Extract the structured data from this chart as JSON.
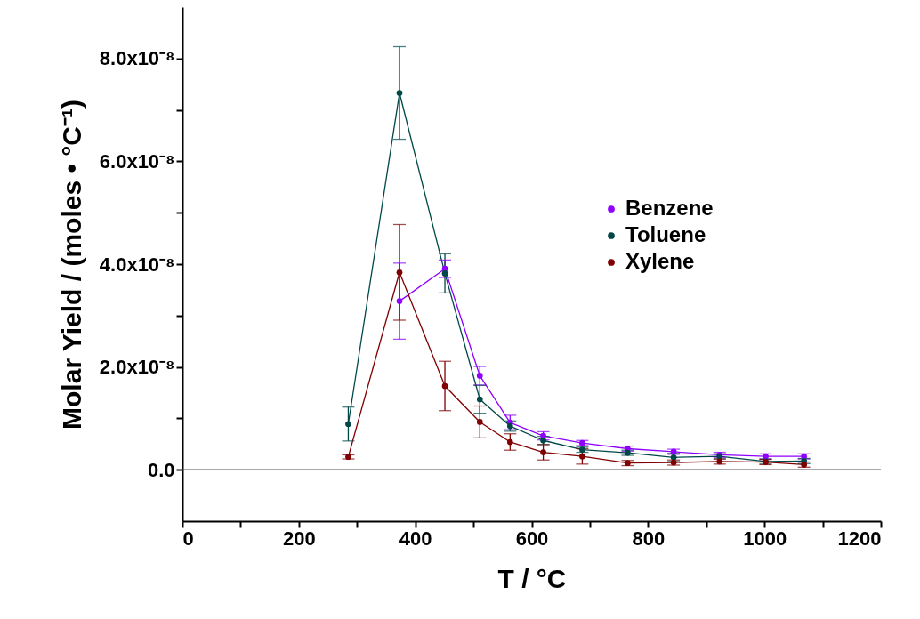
{
  "chart_data": {
    "type": "line",
    "xlabel": "T / °C",
    "ylabel": "Molar Yield / (moles • °C⁻¹)",
    "x": [
      285,
      373,
      451,
      511,
      563,
      620,
      687,
      765,
      844,
      923,
      1002,
      1068
    ],
    "series": [
      {
        "name": "Benzene",
        "color": "#8f00ff",
        "values": [
          null,
          3.28e-08,
          3.91e-08,
          1.83e-08,
          9.2e-09,
          6.6e-09,
          5.2e-09,
          4.1e-09,
          3.5e-09,
          2.9e-09,
          2.6e-09,
          2.6e-09
        ],
        "errors": [
          null,
          7.4e-09,
          1.7e-09,
          1.8e-09,
          1.4e-09,
          8e-10,
          5e-10,
          5e-10,
          5e-10,
          5e-10,
          5e-10,
          5e-10
        ]
      },
      {
        "name": "Toluene",
        "color": "#004848",
        "values": [
          8.9e-09,
          7.33e-08,
          3.82e-08,
          1.37e-08,
          8.5e-09,
          5.7e-09,
          3.9e-09,
          3.3e-09,
          2.4e-09,
          2.6e-09,
          1.6e-09,
          1.7e-09
        ],
        "errors": [
          3.3e-09,
          9e-09,
          3.8e-09,
          2.7e-09,
          1e-09,
          8e-10,
          5e-10,
          5e-10,
          8e-10,
          5e-10,
          5e-10,
          5e-10
        ]
      },
      {
        "name": "Xylene",
        "color": "#800000",
        "values": [
          2.5e-09,
          3.84e-08,
          1.63e-08,
          9.3e-09,
          5.4e-09,
          3.4e-09,
          2.6e-09,
          1.3e-09,
          1.4e-09,
          1.6e-09,
          1.5e-09,
          1e-09
        ],
        "errors": [
          4e-10,
          9.3e-09,
          4.8e-09,
          3.1e-09,
          1.6e-09,
          1.5e-09,
          1.5e-09,
          5e-10,
          5e-10,
          5e-10,
          5e-10,
          5e-10
        ]
      }
    ],
    "xlim": [
      0,
      1200
    ],
    "xticks": [
      0,
      {
        "value": 100,
        "label": null
      },
      200,
      {
        "value": 300,
        "label": null
      },
      400,
      {
        "value": 500,
        "label": null
      },
      600,
      {
        "value": 700,
        "label": null
      },
      800,
      {
        "value": 900,
        "label": null
      },
      1000,
      {
        "value": 1100,
        "label": null
      },
      1200
    ],
    "ylim": [
      -1e-08,
      9e-08
    ],
    "yticks": [
      {
        "value": 0,
        "label": "0.0"
      },
      {
        "value": 1e-08,
        "label": null
      },
      {
        "value": 2e-08,
        "label": "2.0x10⁻⁸"
      },
      {
        "value": 3e-08,
        "label": null
      },
      {
        "value": 4e-08,
        "label": "4.0x10⁻⁸"
      },
      {
        "value": 5e-08,
        "label": null
      },
      {
        "value": 6e-08,
        "label": "6.0x10⁻⁸"
      },
      {
        "value": 7e-08,
        "label": null
      },
      {
        "value": 8e-08,
        "label": "8.0x10⁻⁸"
      }
    ],
    "ref_lines": [
      {
        "axis": "y",
        "value": 0,
        "color": "#555555"
      }
    ],
    "grid": false,
    "legend": "right",
    "marker": "circle",
    "line_style": "solid"
  }
}
